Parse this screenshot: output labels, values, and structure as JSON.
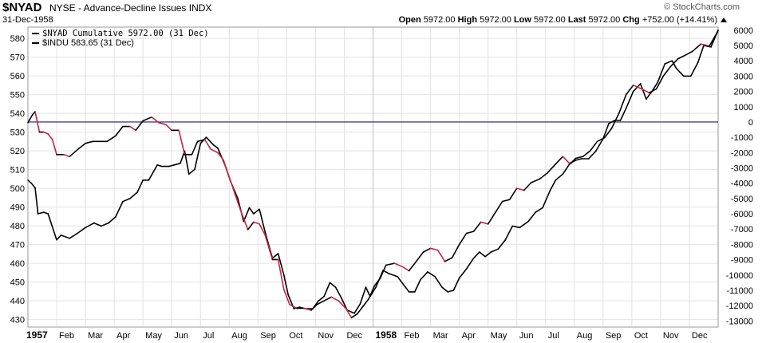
{
  "header": {
    "symbol": "$NYAD",
    "name": "NYSE - Advance-Decline Issues INDX",
    "date": "31-Dec-1958",
    "brand": "© StockCharts.com",
    "open_label": "Open",
    "open": "5972.00",
    "high_label": "High",
    "high": "5972.00",
    "low_label": "Low",
    "low": "5972.00",
    "last_label": "Last",
    "last": "5972.00",
    "chg_label": "Chg",
    "chg": "+752.00 (+14.41%)"
  },
  "legend": {
    "nyad": "$NYAD Cumulative 5972.00 (31 Dec)",
    "indu": "$INDU 583.65 (31 Dec)"
  },
  "chart_data": {
    "type": "line",
    "x_axis_labels": [
      "1957",
      "Feb",
      "Mar",
      "Apr",
      "May",
      "Jun",
      "Jul",
      "Aug",
      "Sep",
      "Oct",
      "Nov",
      "Dec",
      "1958",
      "Feb",
      "Mar",
      "Apr",
      "May",
      "Jun",
      "Jul",
      "Aug",
      "Sep",
      "Oct",
      "Nov",
      "Dec"
    ],
    "left_axis": {
      "label": "$INDU",
      "ticks": [
        430,
        440,
        450,
        460,
        470,
        480,
        490,
        500,
        510,
        520,
        530,
        540,
        550,
        560,
        570,
        580
      ],
      "ylim": [
        426,
        586
      ]
    },
    "right_axis": {
      "label": "$NYAD Cumulative",
      "ticks": [
        -13000,
        -12000,
        -11000,
        -10000,
        -9000,
        -8000,
        -7000,
        -6000,
        -5000,
        -4000,
        -3000,
        -2000,
        -1000,
        0,
        1000,
        2000,
        3000,
        4000,
        5000,
        6000
      ],
      "ylim": [
        -13400,
        6200
      ]
    },
    "zero_line": 0,
    "x_range": [
      0,
      24
    ],
    "grid": true,
    "legend_position": "top-left",
    "colors": {
      "line": "#000000",
      "down_segment": "#cc2244",
      "zero_line": "#1a1a6e",
      "grid": "#e2e2e2"
    },
    "series": [
      {
        "name": "$NYAD Cumulative",
        "axis": "right",
        "points": [
          [
            0.0,
            -3800
          ],
          [
            0.12,
            -4000
          ],
          [
            0.25,
            -4300
          ],
          [
            0.35,
            -6000
          ],
          [
            0.55,
            -5900
          ],
          [
            0.7,
            -6000
          ],
          [
            1.0,
            -7700
          ],
          [
            1.15,
            -7400
          ],
          [
            1.45,
            -7600
          ],
          [
            1.7,
            -7300
          ],
          [
            2.0,
            -6900
          ],
          [
            2.3,
            -6600
          ],
          [
            2.55,
            -6800
          ],
          [
            2.8,
            -6600
          ],
          [
            3.05,
            -6200
          ],
          [
            3.3,
            -5200
          ],
          [
            3.55,
            -5000
          ],
          [
            3.8,
            -4600
          ],
          [
            4.0,
            -3800
          ],
          [
            4.2,
            -3800
          ],
          [
            4.5,
            -2800
          ],
          [
            4.65,
            -2900
          ],
          [
            4.9,
            -2900
          ],
          [
            5.1,
            -2800
          ],
          [
            5.3,
            -2700
          ],
          [
            5.45,
            -1900
          ],
          [
            5.6,
            -3400
          ],
          [
            5.8,
            -3100
          ],
          [
            6.0,
            -1400
          ],
          [
            6.2,
            -1000
          ],
          [
            6.45,
            -1500
          ],
          [
            6.6,
            -1700
          ],
          [
            6.85,
            -2800
          ],
          [
            7.05,
            -3900
          ],
          [
            7.3,
            -5000
          ],
          [
            7.5,
            -6500
          ],
          [
            7.7,
            -5600
          ],
          [
            7.85,
            -6000
          ],
          [
            8.05,
            -5700
          ],
          [
            8.25,
            -7200
          ],
          [
            8.5,
            -8900
          ],
          [
            8.7,
            -8600
          ],
          [
            8.9,
            -10000
          ],
          [
            9.05,
            -11300
          ],
          [
            9.25,
            -12200
          ],
          [
            9.45,
            -12100
          ],
          [
            9.65,
            -12200
          ],
          [
            9.9,
            -12200
          ],
          [
            10.1,
            -11700
          ],
          [
            10.3,
            -11400
          ],
          [
            10.5,
            -10500
          ],
          [
            10.7,
            -10800
          ],
          [
            10.9,
            -11500
          ],
          [
            11.1,
            -12300
          ],
          [
            11.35,
            -12500
          ],
          [
            11.55,
            -11900
          ],
          [
            11.75,
            -10800
          ],
          [
            11.9,
            -11400
          ],
          [
            12.1,
            -10800
          ],
          [
            12.35,
            -9700
          ],
          [
            12.55,
            -9900
          ],
          [
            12.85,
            -10100
          ],
          [
            13.05,
            -10600
          ],
          [
            13.25,
            -11100
          ],
          [
            13.45,
            -11100
          ],
          [
            13.65,
            -10300
          ],
          [
            13.9,
            -9800
          ],
          [
            14.15,
            -10100
          ],
          [
            14.4,
            -10800
          ],
          [
            14.6,
            -11100
          ],
          [
            14.8,
            -11000
          ],
          [
            15.0,
            -10200
          ],
          [
            15.25,
            -9600
          ],
          [
            15.5,
            -8900
          ],
          [
            15.7,
            -8500
          ],
          [
            15.9,
            -8800
          ],
          [
            16.1,
            -8500
          ],
          [
            16.35,
            -8300
          ],
          [
            16.6,
            -7700
          ],
          [
            16.85,
            -6800
          ],
          [
            17.1,
            -6900
          ],
          [
            17.4,
            -6500
          ],
          [
            17.65,
            -5900
          ],
          [
            17.9,
            -5600
          ],
          [
            18.15,
            -4500
          ],
          [
            18.35,
            -3800
          ],
          [
            18.6,
            -3400
          ],
          [
            18.85,
            -2700
          ],
          [
            19.05,
            -2500
          ],
          [
            19.25,
            -2400
          ],
          [
            19.5,
            -2400
          ],
          [
            19.75,
            -1900
          ],
          [
            20.0,
            -1100
          ],
          [
            20.2,
            -100
          ],
          [
            20.4,
            100
          ],
          [
            20.6,
            100
          ],
          [
            20.8,
            900
          ],
          [
            21.05,
            2000
          ],
          [
            21.3,
            2500
          ],
          [
            21.5,
            1500
          ],
          [
            21.7,
            2000
          ],
          [
            21.9,
            2600
          ],
          [
            22.15,
            3800
          ],
          [
            22.4,
            4000
          ],
          [
            22.55,
            3500
          ],
          [
            22.8,
            3000
          ],
          [
            23.05,
            3000
          ],
          [
            23.3,
            3900
          ],
          [
            23.5,
            5000
          ],
          [
            23.75,
            4900
          ],
          [
            24.0,
            6000
          ]
        ]
      },
      {
        "name": "$INDU",
        "axis": "left",
        "points": [
          [
            0.0,
            535
          ],
          [
            0.15,
            539
          ],
          [
            0.25,
            541
          ],
          [
            0.4,
            530
          ],
          [
            0.55,
            530
          ],
          [
            0.7,
            529
          ],
          [
            0.85,
            526
          ],
          [
            1.0,
            518
          ],
          [
            1.25,
            518
          ],
          [
            1.45,
            517
          ],
          [
            1.75,
            521
          ],
          [
            2.0,
            524
          ],
          [
            2.25,
            525
          ],
          [
            2.5,
            525
          ],
          [
            2.75,
            525
          ],
          [
            3.05,
            528
          ],
          [
            3.3,
            533
          ],
          [
            3.55,
            533
          ],
          [
            3.75,
            531
          ],
          [
            4.0,
            536
          ],
          [
            4.3,
            538
          ],
          [
            4.55,
            535
          ],
          [
            4.8,
            534
          ],
          [
            5.0,
            531
          ],
          [
            5.25,
            531
          ],
          [
            5.45,
            518
          ],
          [
            5.7,
            518
          ],
          [
            5.9,
            525
          ],
          [
            6.15,
            526
          ],
          [
            6.35,
            521
          ],
          [
            6.6,
            519
          ],
          [
            6.8,
            515
          ],
          [
            7.0,
            506
          ],
          [
            7.2,
            497
          ],
          [
            7.4,
            488
          ],
          [
            7.65,
            478
          ],
          [
            7.85,
            482
          ],
          [
            8.05,
            481
          ],
          [
            8.25,
            475
          ],
          [
            8.5,
            462
          ],
          [
            8.7,
            462
          ],
          [
            8.9,
            446
          ],
          [
            9.1,
            438
          ],
          [
            9.35,
            436
          ],
          [
            9.6,
            436
          ],
          [
            9.85,
            435
          ],
          [
            10.05,
            438
          ],
          [
            10.3,
            440
          ],
          [
            10.55,
            442
          ],
          [
            10.8,
            440
          ],
          [
            11.05,
            436
          ],
          [
            11.25,
            431
          ],
          [
            11.45,
            433
          ],
          [
            11.65,
            437
          ],
          [
            11.85,
            441
          ],
          [
            12.05,
            448
          ],
          [
            12.25,
            452
          ],
          [
            12.45,
            459
          ],
          [
            12.75,
            460
          ],
          [
            13.05,
            458
          ],
          [
            13.25,
            456
          ],
          [
            13.5,
            461
          ],
          [
            13.75,
            466
          ],
          [
            14.0,
            468
          ],
          [
            14.25,
            467
          ],
          [
            14.5,
            461
          ],
          [
            14.75,
            463
          ],
          [
            15.0,
            470
          ],
          [
            15.25,
            476
          ],
          [
            15.5,
            477
          ],
          [
            15.75,
            482
          ],
          [
            16.0,
            481
          ],
          [
            16.25,
            487
          ],
          [
            16.5,
            493
          ],
          [
            16.75,
            494
          ],
          [
            17.0,
            500
          ],
          [
            17.25,
            499
          ],
          [
            17.5,
            503
          ],
          [
            17.8,
            505
          ],
          [
            18.05,
            508
          ],
          [
            18.35,
            513
          ],
          [
            18.6,
            517
          ],
          [
            18.85,
            513
          ],
          [
            19.05,
            516
          ],
          [
            19.3,
            517
          ],
          [
            19.55,
            520
          ],
          [
            19.8,
            525
          ],
          [
            20.05,
            527
          ],
          [
            20.3,
            532
          ],
          [
            20.55,
            540
          ],
          [
            20.8,
            550
          ],
          [
            21.05,
            555
          ],
          [
            21.35,
            553
          ],
          [
            21.6,
            551
          ],
          [
            21.85,
            553
          ],
          [
            22.1,
            560
          ],
          [
            22.35,
            565
          ],
          [
            22.6,
            569
          ],
          [
            22.85,
            571
          ],
          [
            23.1,
            573
          ],
          [
            23.4,
            577
          ],
          [
            23.7,
            576
          ],
          [
            24.0,
            584
          ]
        ]
      }
    ]
  }
}
